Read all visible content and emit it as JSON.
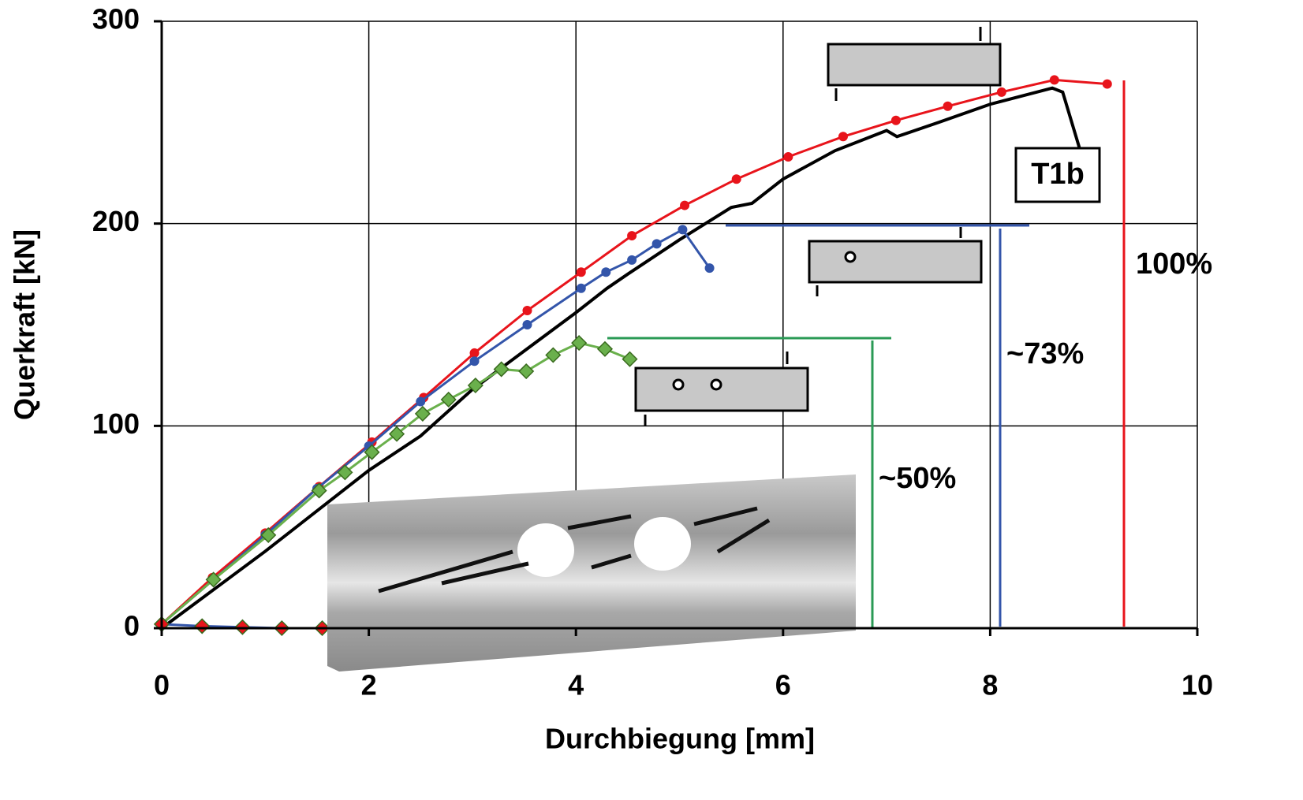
{
  "chart_data": {
    "type": "line",
    "xlabel": "Durchbiegung [mm]",
    "ylabel": "Querkraft [kN]",
    "xlim": [
      0,
      10
    ],
    "ylim": [
      0,
      300
    ],
    "xticks": [
      0,
      2,
      4,
      6,
      8,
      10
    ],
    "yticks": [
      0,
      100,
      200,
      300
    ],
    "grid": true,
    "series": [
      {
        "color": "#000000",
        "marker": "none",
        "x": [
          0,
          1,
          2,
          2.5,
          3,
          3.5,
          4,
          4.3,
          4.5,
          5,
          5.5,
          5.7,
          6,
          6.5,
          7,
          7.1,
          7.5,
          8,
          8.6,
          8.7,
          8.87
        ],
        "values": [
          0,
          38,
          78,
          95,
          118,
          137,
          156,
          168,
          175,
          192,
          208,
          210,
          222,
          236,
          246,
          243,
          250,
          259,
          267,
          265,
          236
        ]
      },
      {
        "color": "#e8141b",
        "marker": "circle",
        "x": [
          0,
          0.49,
          1.0,
          1.52,
          2.03,
          2.53,
          3.02,
          3.53,
          4.05,
          4.54,
          5.05,
          5.55,
          6.05,
          6.58,
          7.09,
          7.59,
          8.11,
          8.62,
          9.13
        ],
        "values": [
          2,
          25,
          47,
          70,
          92,
          114,
          136,
          157,
          176,
          194,
          209,
          222,
          233,
          243,
          251,
          258,
          265,
          271,
          269
        ]
      },
      {
        "color": "#3355aa",
        "marker": "circle",
        "x": [
          0,
          0.5,
          1.0,
          1.5,
          2.0,
          2.5,
          3.02,
          3.53,
          4.05,
          4.29,
          4.54,
          4.78,
          5.03,
          5.29
        ],
        "values": [
          2,
          24,
          46,
          69,
          90,
          112,
          132,
          150,
          168,
          176,
          182,
          190,
          197,
          178
        ]
      },
      {
        "color": "#6ab04c",
        "marker": "diamond",
        "x": [
          0,
          0.5,
          1.03,
          1.52,
          1.77,
          2.03,
          2.27,
          2.52,
          2.77,
          3.03,
          3.28,
          3.52,
          3.78,
          4.03,
          4.28,
          4.52
        ],
        "values": [
          2,
          24,
          46,
          68,
          77,
          87,
          96,
          106,
          113,
          120,
          128,
          127,
          135,
          141,
          138,
          133
        ]
      },
      {
        "color": "#e8141b",
        "marker": "diamond",
        "line_color": "#3355aa",
        "x": [
          0,
          0.39,
          0.78,
          1.16,
          1.55
        ],
        "values": [
          2,
          1,
          0.5,
          0,
          0
        ]
      }
    ],
    "annotations": [
      "T1b",
      "100%",
      "~73%",
      "~50%"
    ]
  }
}
